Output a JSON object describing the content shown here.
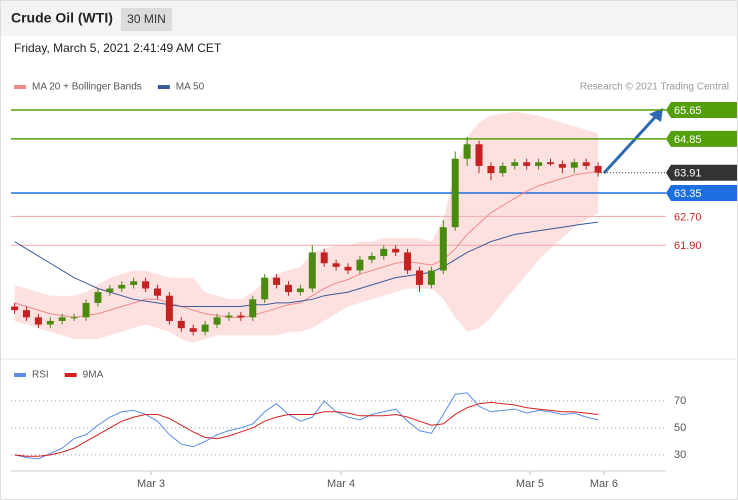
{
  "header": {
    "title": "Crude Oil (WTI)",
    "timeframe": "30 MIN",
    "datetime": "Friday, March 5, 2021 2:41:49 AM CET",
    "credit": "Research © 2021 Trading Central"
  },
  "chart_data": [
    {
      "type": "candlestick",
      "xlim": [
        -0.3,
        54.7
      ],
      "ylim": [
        58.8,
        65.9
      ],
      "up_color": "#4a8a10",
      "down_color": "#c42121",
      "open": [
        60.2,
        60.1,
        59.9,
        59.7,
        59.8,
        59.9,
        59.9,
        60.3,
        60.6,
        60.7,
        60.8,
        60.9,
        60.7,
        60.5,
        59.8,
        59.6,
        59.5,
        59.7,
        59.9,
        59.95,
        59.9,
        60.4,
        61.0,
        60.8,
        60.6,
        60.7,
        61.7,
        61.4,
        61.3,
        61.2,
        61.5,
        61.6,
        61.8,
        61.7,
        61.2,
        60.8,
        61.2,
        62.4,
        64.3,
        64.7,
        64.1,
        63.9,
        64.1,
        64.2,
        64.1,
        64.2,
        64.15,
        64.05,
        64.2,
        64.1
      ],
      "high": [
        60.3,
        60.2,
        60.0,
        59.9,
        60.0,
        60.0,
        60.4,
        60.7,
        60.8,
        60.9,
        61.0,
        61.0,
        60.8,
        60.6,
        59.9,
        59.7,
        59.8,
        60.0,
        60.05,
        60.05,
        60.5,
        61.1,
        61.1,
        60.9,
        60.8,
        61.9,
        61.8,
        61.5,
        61.4,
        61.6,
        61.7,
        61.9,
        61.9,
        61.8,
        61.3,
        61.3,
        62.6,
        64.5,
        64.9,
        64.8,
        64.2,
        64.2,
        64.3,
        64.3,
        64.3,
        64.3,
        64.25,
        64.3,
        64.3,
        64.2
      ],
      "low": [
        60.0,
        59.8,
        59.6,
        59.6,
        59.7,
        59.8,
        59.8,
        60.2,
        60.5,
        60.6,
        60.7,
        60.6,
        60.4,
        59.7,
        59.5,
        59.4,
        59.4,
        59.6,
        59.8,
        59.8,
        59.8,
        60.3,
        60.7,
        60.5,
        60.5,
        60.6,
        61.3,
        61.2,
        61.1,
        61.1,
        61.4,
        61.5,
        61.6,
        61.1,
        60.6,
        60.7,
        61.1,
        62.3,
        64.1,
        63.9,
        63.7,
        63.8,
        64.0,
        64.0,
        64.0,
        64.1,
        63.9,
        63.9,
        64.0,
        63.8
      ],
      "close": [
        60.1,
        59.9,
        59.7,
        59.8,
        59.9,
        59.9,
        60.3,
        60.6,
        60.7,
        60.8,
        60.9,
        60.7,
        60.5,
        59.8,
        59.6,
        59.5,
        59.7,
        59.9,
        59.95,
        59.9,
        60.4,
        61.0,
        60.8,
        60.6,
        60.7,
        61.7,
        61.4,
        61.3,
        61.2,
        61.5,
        61.6,
        61.8,
        61.7,
        61.2,
        60.8,
        61.2,
        62.4,
        64.3,
        64.7,
        64.1,
        63.9,
        64.1,
        64.2,
        64.1,
        64.2,
        64.15,
        64.05,
        64.2,
        64.1,
        63.91
      ],
      "bands": {
        "color": "#fde1e1",
        "upper": [
          60.8,
          60.7,
          60.6,
          60.5,
          60.5,
          60.5,
          60.6,
          60.8,
          61.0,
          61.1,
          61.2,
          61.2,
          61.1,
          61.0,
          61.0,
          61.0,
          60.6,
          60.5,
          60.4,
          60.4,
          60.6,
          60.9,
          61.1,
          61.2,
          61.3,
          61.7,
          61.8,
          61.9,
          61.9,
          62.0,
          62.0,
          62.1,
          62.1,
          62.1,
          62.1,
          62.0,
          62.6,
          64.0,
          64.9,
          65.3,
          65.5,
          65.55,
          65.6,
          65.55,
          65.5,
          65.4,
          65.3,
          65.2,
          65.1,
          65.0
        ],
        "lower": [
          59.8,
          59.7,
          59.6,
          59.5,
          59.4,
          59.3,
          59.3,
          59.3,
          59.4,
          59.5,
          59.6,
          59.7,
          59.6,
          59.5,
          59.3,
          59.2,
          59.3,
          59.4,
          59.4,
          59.4,
          59.4,
          59.4,
          59.4,
          59.5,
          59.5,
          59.6,
          59.8,
          60.0,
          60.2,
          60.3,
          60.4,
          60.5,
          60.6,
          60.7,
          60.7,
          60.7,
          60.4,
          59.9,
          59.5,
          59.6,
          59.9,
          60.3,
          60.7,
          61.1,
          61.5,
          61.8,
          62.1,
          62.4,
          62.6,
          62.8
        ]
      },
      "series": [
        {
          "name": "MA 20 + Bollinger Bands",
          "color": "#f08a8a",
          "values": [
            60.3,
            60.2,
            60.1,
            60.0,
            59.95,
            59.9,
            59.95,
            60.0,
            60.1,
            60.2,
            60.3,
            60.4,
            60.4,
            60.3,
            60.2,
            60.1,
            60.0,
            59.95,
            59.9,
            59.9,
            59.95,
            60.05,
            60.15,
            60.25,
            60.3,
            60.5,
            60.7,
            60.85,
            60.95,
            61.1,
            61.2,
            61.3,
            61.4,
            61.45,
            61.4,
            61.35,
            61.5,
            61.8,
            62.2,
            62.5,
            62.8,
            63.0,
            63.2,
            63.4,
            63.55,
            63.65,
            63.75,
            63.85,
            63.9,
            63.95
          ]
        },
        {
          "name": "MA 50",
          "color": "#3a5a98",
          "values": [
            62.0,
            61.8,
            61.6,
            61.4,
            61.2,
            61.0,
            60.85,
            60.7,
            60.6,
            60.5,
            60.4,
            60.35,
            60.3,
            60.25,
            60.2,
            60.2,
            60.2,
            60.2,
            60.2,
            60.2,
            60.25,
            60.25,
            60.3,
            60.3,
            60.35,
            60.4,
            60.5,
            60.55,
            60.6,
            60.7,
            60.8,
            60.9,
            61.0,
            61.05,
            61.1,
            61.15,
            61.3,
            61.5,
            61.7,
            61.85,
            62.0,
            62.1,
            62.2,
            62.25,
            62.3,
            62.35,
            62.4,
            62.45,
            62.5,
            62.54
          ]
        }
      ],
      "levels": [
        {
          "value": 65.65,
          "color": "#54a00c",
          "style": "box",
          "line": "solid"
        },
        {
          "value": 64.85,
          "color": "#54a00c",
          "style": "box",
          "line": "solid"
        },
        {
          "value": 63.91,
          "color": "#333333",
          "style": "box",
          "line": "dotted"
        },
        {
          "value": 63.35,
          "color": "#1d6fe0",
          "style": "box",
          "line": "solid"
        },
        {
          "value": 62.7,
          "label": "62.70",
          "color": "#c62828",
          "style": "text",
          "line": "solid"
        },
        {
          "value": 61.9,
          "label": "61.90",
          "color": "#c62828",
          "style": "text",
          "line": "solid"
        }
      ]
    },
    {
      "type": "line",
      "xlim": [
        -0.3,
        54.7
      ],
      "ylim": [
        18,
        96
      ],
      "yticks": [
        30,
        50,
        70
      ],
      "xticks": [
        {
          "value": 11.46,
          "label": "Mar 3"
        },
        {
          "value": 27.41,
          "label": "Mar 4"
        },
        {
          "value": 43.28,
          "label": "Mar 5"
        },
        {
          "value": 49.49,
          "label": "Mar 6"
        }
      ],
      "series": [
        {
          "name": "RSI",
          "color": "#5b8de8",
          "values": [
            30,
            28,
            27,
            31,
            35,
            42,
            45,
            52,
            58,
            62,
            63,
            60,
            55,
            45,
            38,
            36,
            40,
            45,
            48,
            50,
            53,
            62,
            68,
            60,
            55,
            58,
            70,
            62,
            58,
            56,
            60,
            62,
            64,
            55,
            48,
            46,
            60,
            75,
            76,
            66,
            62,
            63,
            64,
            61,
            63,
            62,
            60,
            61,
            58,
            56
          ]
        },
        {
          "name": "9MA",
          "color": "#d42020",
          "values": [
            30,
            29,
            29,
            30,
            32,
            35,
            40,
            45,
            50,
            55,
            58,
            60,
            60,
            57,
            52,
            47,
            43,
            42,
            44,
            47,
            50,
            55,
            58,
            60,
            60,
            60,
            62,
            62,
            61,
            59,
            59,
            59,
            60,
            58,
            55,
            52,
            53,
            60,
            65,
            68,
            69,
            68,
            67,
            65,
            64,
            63,
            62,
            62,
            61,
            60
          ]
        }
      ]
    }
  ]
}
